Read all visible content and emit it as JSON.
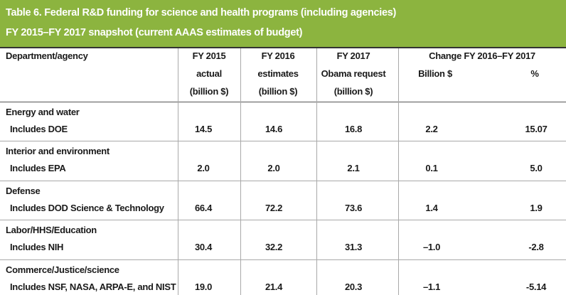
{
  "header": {
    "title": "Table 6. Federal R&D funding for science and health programs (including agencies)",
    "subtitle": "FY 2015–FY 2017 snapshot (current AAAS estimates of budget)"
  },
  "table": {
    "columns": [
      [
        "Department/agency"
      ],
      [
        "FY 2015",
        "actual",
        "(billion $)"
      ],
      [
        "FY 2016",
        "estimates",
        "(billion $)"
      ],
      [
        "FY 2017",
        "Obama request",
        "(billion $)"
      ]
    ],
    "group": "Change FY 2016–FY 2017",
    "subcolumns": [
      "Billion $",
      "%"
    ],
    "rows": [
      {
        "name": "Energy and water",
        "detail": "Includes DOE",
        "values": [
          "14.5",
          "14.6",
          "16.8",
          "2.2",
          "15.07"
        ]
      },
      {
        "name": "Interior and environment",
        "detail": "Includes EPA",
        "values": [
          "2.0",
          "2.0",
          "2.1",
          "0.1",
          "5.0"
        ]
      },
      {
        "name": "Defense",
        "detail": "Includes DOD Science & Technology",
        "values": [
          "66.4",
          "72.2",
          "73.6",
          "1.4",
          "1.9"
        ]
      },
      {
        "name": "Labor/HHS/Education",
        "detail": "Includes NIH",
        "values": [
          "30.4",
          "32.2",
          "31.3",
          "–1.0",
          "-2.8"
        ]
      },
      {
        "name": "Commerce/Justice/science",
        "detail": "Includes NSF, NASA, ARPA-E, and NIST",
        "values": [
          "19.0",
          "21.4",
          "20.3",
          "–1.1",
          "-5.14"
        ]
      }
    ]
  }
}
